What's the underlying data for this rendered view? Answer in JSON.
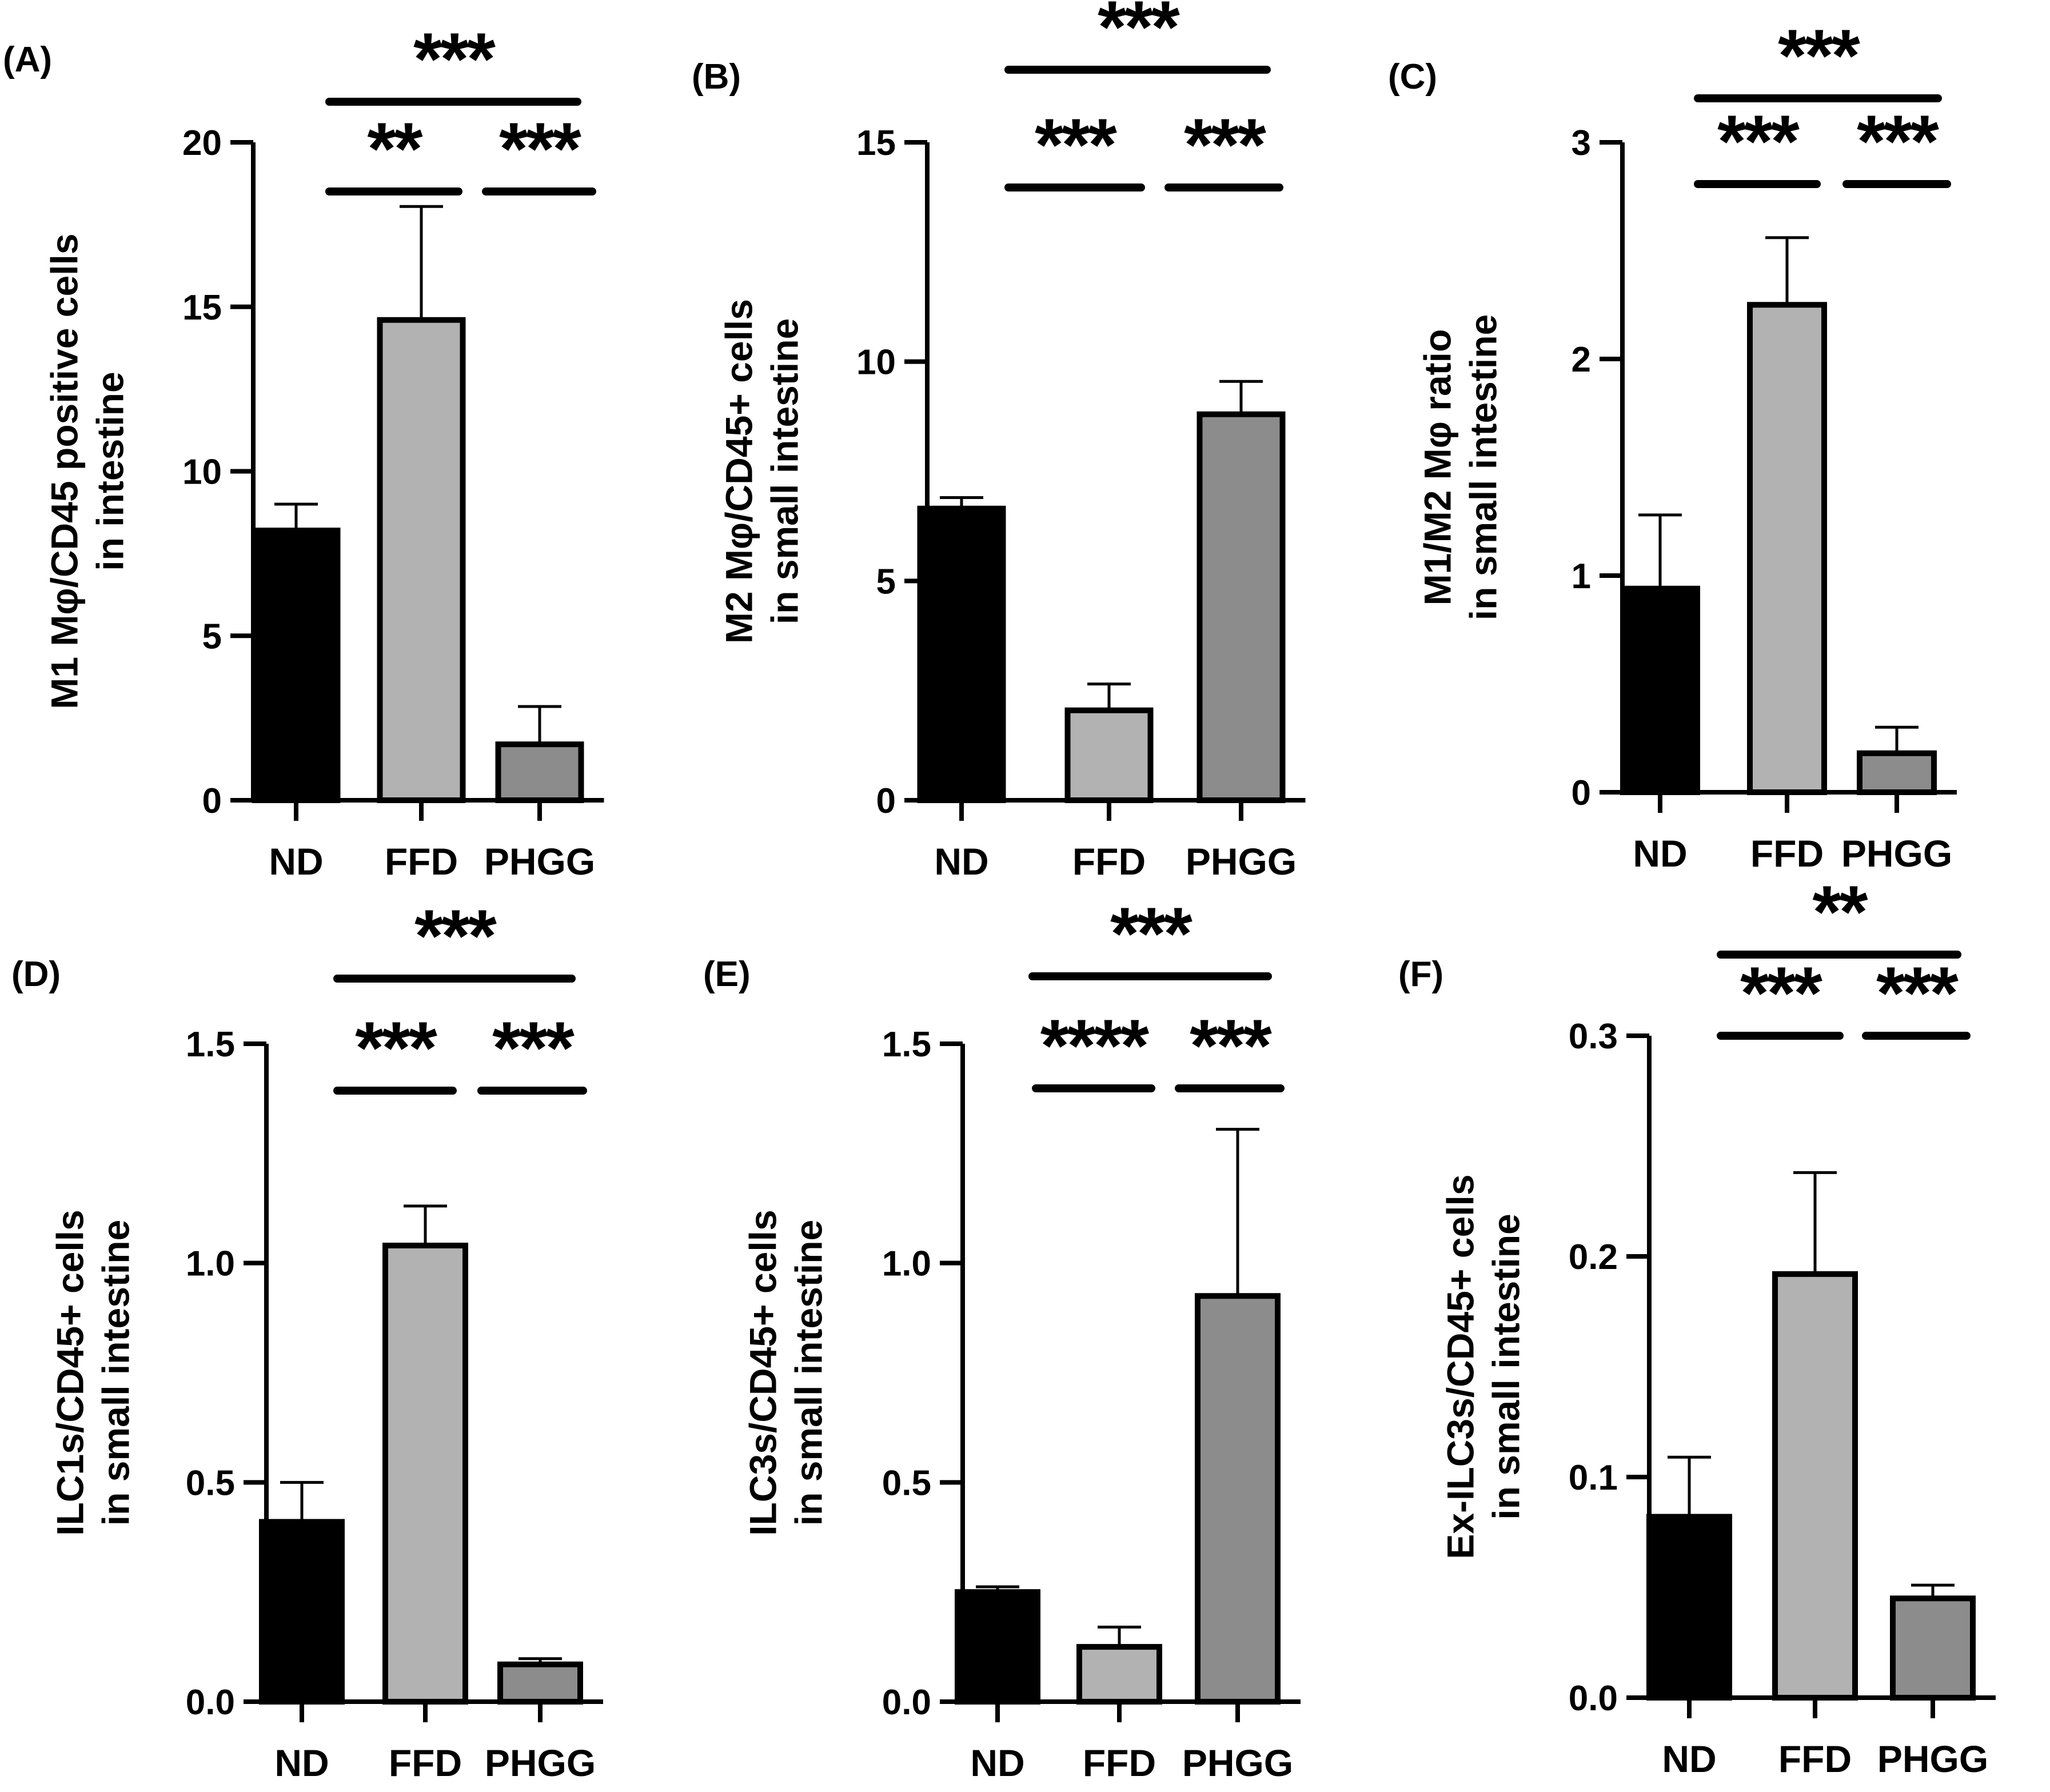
{
  "chart_data": [
    {
      "panel": "(A)",
      "type": "bar",
      "ylabel": [
        "M1 Mφ/CD45 positive cells",
        "in  intestine"
      ],
      "categories": [
        "ND",
        "FFD",
        "PHGG"
      ],
      "values": [
        8.2,
        14.6,
        1.7
      ],
      "errors": [
        0.8,
        3.45,
        1.15
      ],
      "colors": [
        "#000000",
        "#b2b2b2",
        "#8c8c8c"
      ],
      "ylim": [
        0,
        20
      ],
      "yticks": [
        0,
        5,
        10,
        15,
        20
      ],
      "tick_labels": [
        "0",
        "5",
        "10",
        "15",
        "20"
      ],
      "significance": [
        {
          "from": 0,
          "to": 2,
          "label": "***",
          "level": 0
        },
        {
          "from": 0,
          "to": 1,
          "label": "**",
          "level": 1
        },
        {
          "from": 1,
          "to": 2,
          "label": "***",
          "level": 1
        }
      ]
    },
    {
      "panel": "(B)",
      "type": "bar",
      "ylabel": [
        "M2 Mφ/CD45+ cells",
        "in small intestine"
      ],
      "categories": [
        "ND",
        "FFD",
        "PHGG"
      ],
      "values": [
        6.65,
        2.05,
        8.8
      ],
      "errors": [
        0.25,
        0.6,
        0.75
      ],
      "colors": [
        "#000000",
        "#b2b2b2",
        "#8c8c8c"
      ],
      "ylim": [
        0,
        15
      ],
      "yticks": [
        0,
        5,
        10,
        15
      ],
      "tick_labels": [
        "0",
        "5",
        "10",
        "15"
      ],
      "significance": [
        {
          "from": 0,
          "to": 2,
          "label": "***",
          "level": 0
        },
        {
          "from": 0,
          "to": 1,
          "label": "***",
          "level": 1
        },
        {
          "from": 1,
          "to": 2,
          "label": "***",
          "level": 1
        }
      ]
    },
    {
      "panel": "(C)",
      "type": "bar",
      "ylabel": [
        "M1/M2 Mφ ratio",
        "in small intestine"
      ],
      "categories": [
        "ND",
        "FFD",
        "PHGG"
      ],
      "values": [
        0.94,
        2.25,
        0.18
      ],
      "errors": [
        0.34,
        0.31,
        0.12
      ],
      "colors": [
        "#000000",
        "#b2b2b2",
        "#8c8c8c"
      ],
      "ylim": [
        0,
        3
      ],
      "yticks": [
        0,
        1,
        2,
        3
      ],
      "tick_labels": [
        "0",
        "1",
        "2",
        "3"
      ],
      "significance": [
        {
          "from": 0,
          "to": 2,
          "label": "***",
          "level": 0
        },
        {
          "from": 0,
          "to": 1,
          "label": "***",
          "level": 1
        },
        {
          "from": 1,
          "to": 2,
          "label": "***",
          "level": 1
        }
      ]
    },
    {
      "panel": "(D)",
      "type": "bar",
      "ylabel": [
        "ILC1s/CD45+ cells",
        "in small intestine"
      ],
      "categories": [
        "ND",
        "FFD",
        "PHGG"
      ],
      "values": [
        0.41,
        1.04,
        0.085
      ],
      "errors": [
        0.09,
        0.09,
        0.013
      ],
      "colors": [
        "#000000",
        "#b2b2b2",
        "#8c8c8c"
      ],
      "ylim": [
        0,
        1.5
      ],
      "yticks": [
        0,
        0.5,
        1.0,
        1.5
      ],
      "tick_labels": [
        "0.0",
        "0.5",
        "1.0",
        "1.5"
      ],
      "significance": [
        {
          "from": 0,
          "to": 2,
          "label": "***",
          "level": 0
        },
        {
          "from": 0,
          "to": 1,
          "label": "***",
          "level": 1
        },
        {
          "from": 1,
          "to": 2,
          "label": "***",
          "level": 1
        }
      ]
    },
    {
      "panel": "(E)",
      "type": "bar",
      "ylabel": [
        "ILC3s/CD45+ cells",
        "in small intestine"
      ],
      "categories": [
        "ND",
        "FFD",
        "PHGG"
      ],
      "values": [
        0.25,
        0.125,
        0.925
      ],
      "errors": [
        0.012,
        0.045,
        0.38
      ],
      "colors": [
        "#000000",
        "#b2b2b2",
        "#8c8c8c"
      ],
      "ylim": [
        0,
        1.5
      ],
      "yticks": [
        0,
        0.5,
        1.0,
        1.5
      ],
      "tick_labels": [
        "0.0",
        "0.5",
        "1.0",
        "1.5"
      ],
      "significance": [
        {
          "from": 0,
          "to": 2,
          "label": "***",
          "level": 0
        },
        {
          "from": 0,
          "to": 1,
          "label": "****",
          "level": 1
        },
        {
          "from": 1,
          "to": 2,
          "label": "***",
          "level": 1
        }
      ]
    },
    {
      "panel": "(F)",
      "type": "bar",
      "ylabel": [
        "Ex-ILC3s/CD45+ cells",
        "in small intestine"
      ],
      "categories": [
        "ND",
        "FFD",
        "PHGG"
      ],
      "values": [
        0.082,
        0.192,
        0.045
      ],
      "errors": [
        0.027,
        0.046,
        0.006
      ],
      "colors": [
        "#000000",
        "#b2b2b2",
        "#8c8c8c"
      ],
      "ylim": [
        0,
        0.3
      ],
      "yticks": [
        0,
        0.1,
        0.2,
        0.3
      ],
      "tick_labels": [
        "0.0",
        "0.1",
        "0.2",
        "0.3"
      ],
      "significance": [
        {
          "from": 0,
          "to": 2,
          "label": "**",
          "level": 0
        },
        {
          "from": 0,
          "to": 1,
          "label": "***",
          "level": 1
        },
        {
          "from": 1,
          "to": 2,
          "label": "***",
          "level": 1
        }
      ]
    }
  ]
}
